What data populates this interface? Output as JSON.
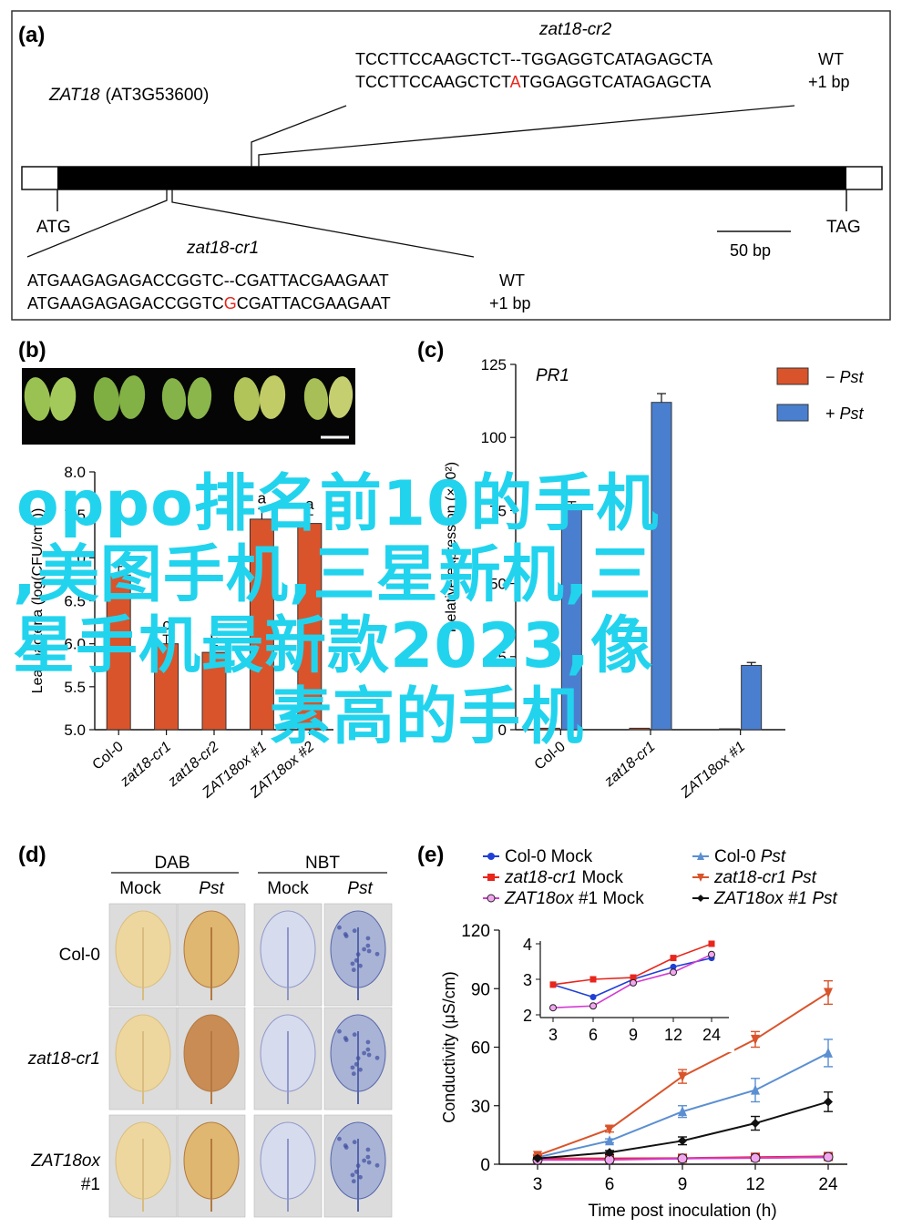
{
  "panel_a": {
    "label": "(a)",
    "gene": "ZAT18",
    "locus": "(AT3G53600)",
    "start_label": "ATG",
    "stop_label": "TAG",
    "scale_label": "50 bp",
    "cr2": {
      "name": "zat18-cr2",
      "wt_seq": "TCCTTCCAAGCTCT--TGGAGGTCATAGAGCTA",
      "mut_prefix": "TCCTTCCAAGCTCT",
      "mut_insert": "A",
      "mut_suffix": "TGGAGGTCATAGAGCTA",
      "wt_tag": "WT",
      "mut_tag": "+1 bp"
    },
    "cr1": {
      "name": "zat18-cr1",
      "wt_seq": "ATGAAGAGAGACCGGTC--CGATTACGAAGAAT",
      "mut_prefix": "ATGAAGAGAGACCGGTC",
      "mut_insert": "G",
      "mut_suffix": "CGATTACGAAGAAT",
      "wt_tag": "WT",
      "mut_tag": "+1 bp"
    }
  },
  "panel_b": {
    "label": "(b)"
  },
  "panel_c": {
    "label": "(c)",
    "title": "PR1"
  },
  "panel_d": {
    "label": "(d)",
    "group1": "DAB",
    "group2": "NBT",
    "col_mock": "Mock",
    "col_pst": "Pst",
    "rows": [
      "Col-0",
      "zat18-cr1",
      "ZAT18ox",
      "#1"
    ]
  },
  "panel_e": {
    "label": "(e)"
  },
  "colors": {
    "orange": "#d9542b",
    "blue": "#4a7fd0",
    "lightblue": "#5b8fd1",
    "magenta": "#d43bd1",
    "black": "#111111",
    "red_insert": "#e8261c",
    "overlay": "#22d3ee"
  },
  "chart_data": [
    {
      "type": "bar",
      "panel": "b",
      "categories": [
        "Col-0",
        "zat18-cr1",
        "zat18-cr2",
        "ZAT18ox #1",
        "ZAT18ox #2"
      ],
      "ylabel": "Leaf bacteria (log(CFU/cm²))",
      "ylim": [
        5.0,
        8.0
      ],
      "yticks": [
        "5.0",
        "5.5",
        "6.0",
        "6.5",
        "7.0",
        "7.5",
        "8.0"
      ],
      "values": [
        6.8,
        6.0,
        5.9,
        7.45,
        7.4
      ],
      "errors": [
        0.1,
        0.1,
        0.08,
        0.12,
        0.1
      ],
      "letters": [
        "",
        "c",
        "c",
        "a",
        "a"
      ],
      "color": "#d9542b"
    },
    {
      "type": "bar",
      "panel": "c",
      "title": "PR1",
      "categories": [
        "Col-0",
        "zat18-cr1",
        "ZAT18ox #1"
      ],
      "ylabel": "Relative expression (×10²)",
      "ylim": [
        0,
        125
      ],
      "yticks": [
        "0",
        "25",
        "50",
        "75",
        "100",
        "125"
      ],
      "series": [
        {
          "name": "− Pst",
          "values": [
            0.5,
            0.5,
            0.3
          ],
          "color": "#d9542b"
        },
        {
          "name": "+ Pst",
          "values": [
            76,
            112,
            22
          ],
          "errors": [
            2,
            3,
            1
          ],
          "color": "#4a7fd0"
        }
      ],
      "legend": "top-right"
    },
    {
      "type": "line",
      "panel": "e",
      "x": [
        3,
        6,
        9,
        12,
        24
      ],
      "xticks": [
        "3",
        "6",
        "9",
        "12",
        "24"
      ],
      "xlabel": "Time post inoculation (h)",
      "ylabel": "Conductivity (μS/cm)",
      "ylim": [
        0,
        120
      ],
      "yticks": [
        "0",
        "30",
        "60",
        "90",
        "120"
      ],
      "series": [
        {
          "name": "Col-0 Mock",
          "italic_part": "",
          "values": [
            2.8,
            2.5,
            3.0,
            3.3,
            3.6
          ],
          "color": "#1f3fd6",
          "marker": "circle"
        },
        {
          "name": "Col-0 Pst",
          "italic_part": "Pst",
          "values": [
            3.5,
            12,
            27,
            38,
            57
          ],
          "errors": [
            0.5,
            1,
            3,
            6,
            7
          ],
          "color": "#5b8fd1",
          "marker": "triangle-up"
        },
        {
          "name": "zat18-cr1 Mock",
          "italic_part": "zat18-cr1",
          "values": [
            2.9,
            3.0,
            3.1,
            3.6,
            4.0
          ],
          "color": "#e8261c",
          "marker": "square"
        },
        {
          "name": "zat18-cr1 Pst",
          "italic_part": "zat18-cr1 Pst",
          "values": [
            4.5,
            18,
            45,
            64,
            88
          ],
          "errors": [
            0.5,
            1.5,
            3.5,
            4,
            6
          ],
          "color": "#d9542b",
          "marker": "triangle-down"
        },
        {
          "name": "ZAT18ox #1 Mock",
          "italic_part": "ZAT18ox",
          "values": [
            2.2,
            2.3,
            2.9,
            3.2,
            3.7
          ],
          "color": "#d43bd1",
          "marker": "circle-open"
        },
        {
          "name": "ZAT18ox #1 Pst",
          "italic_part": "ZAT18ox #1 Pst",
          "values": [
            3.0,
            6,
            12,
            21,
            32
          ],
          "errors": [
            0.4,
            1,
            2,
            3.5,
            5
          ],
          "color": "#111111",
          "marker": "diamond"
        }
      ],
      "legend": "top",
      "inset": {
        "x": [
          3,
          6,
          9,
          12,
          24
        ],
        "xticks": [
          "3",
          "6",
          "9",
          "12",
          "24"
        ],
        "ylim": [
          2,
          4
        ],
        "yticks": [
          "2",
          "3",
          "4"
        ],
        "series_values": {
          "Col-0 Mock": [
            2.85,
            2.5,
            3.0,
            3.35,
            3.6
          ],
          "zat18-cr1 Mock": [
            2.85,
            3.0,
            3.05,
            3.6,
            4.0
          ],
          "ZAT18ox #1 Mock": [
            2.2,
            2.25,
            2.9,
            3.2,
            3.7
          ]
        }
      }
    }
  ],
  "overlay_text": {
    "line1": "oppo排名前10的手机",
    "line2": ",美图手机,三星新机,三",
    "line3": "星手机最新款2023,像",
    "line4": "素高的手机"
  }
}
